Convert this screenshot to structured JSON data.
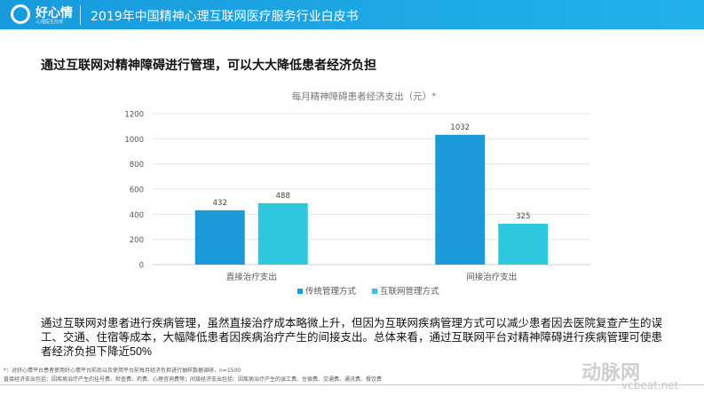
{
  "header": {
    "logo_text": "好心情",
    "logo_sub": "心理医生在线",
    "title": "2019年中国精神心理互联网医疗服务行业白皮书"
  },
  "headline": "通过互联网对精神障碍进行管理，可以大大降低患者经济负担",
  "chart_data": {
    "type": "bar",
    "title": "每月精神障碍患者经济支出（元）*",
    "categories": [
      "直接治疗支出",
      "间接治疗支出"
    ],
    "series": [
      {
        "name": "传统管理方式",
        "values": [
          432,
          1032
        ],
        "color": "#1a9ad8"
      },
      {
        "name": "互联网管理方式",
        "values": [
          488,
          325
        ],
        "color": "#2ec8de"
      }
    ],
    "ylim": [
      0,
      1200
    ],
    "yticks": [
      0,
      200,
      400,
      600,
      800,
      1000,
      1200
    ],
    "grid": true,
    "legend": "bottom"
  },
  "summary": {
    "text": "通过互联网对患者进行疾病管理，虽然直接治疗成本略微上升，但因为互联网疾病管理方式可以减少患者因去医院复查产生的误工、交通、住宿等成本，大幅降低患者因疾病治疗产生的间接支出。总体来看，通过互联网平台对精神障碍进行疾病管理可使患者经济负担下降近",
    "pct": "50%"
  },
  "footnotes": [
    "*：对好心情平台患者使用好心情平台前后以及使用平台前每月经济负担进行抽样数据调研，n=1500",
    "直接经济支出包括：因疾病治疗产生的挂号费、检查费、药费、心理咨询费等；间接经济支出包括：因疾病治疗产生的误工费、住宿费、交通费、通讯费、餐饮费"
  ],
  "watermark": {
    "brand": "动脉网",
    "url": "vcbeat.net"
  }
}
